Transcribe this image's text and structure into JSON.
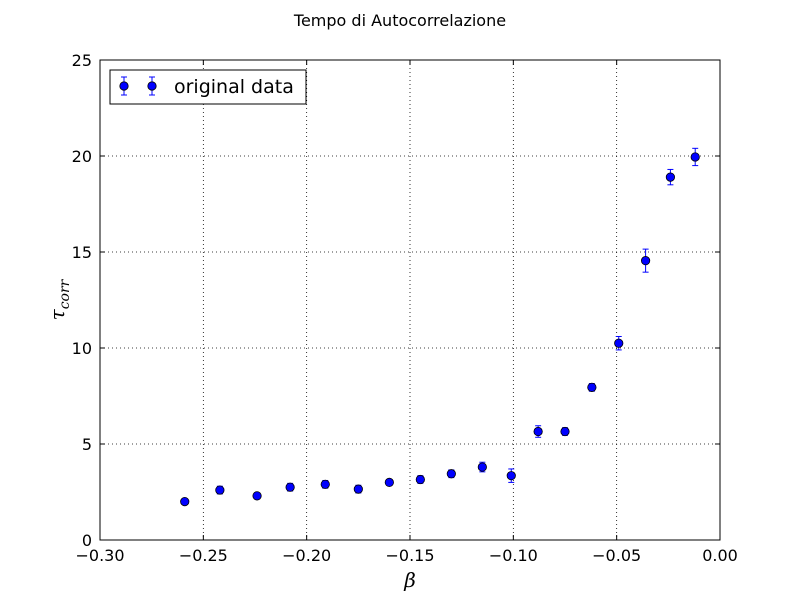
{
  "colors": {
    "marker": "#0000ff",
    "marker_edge": "#000000",
    "grid": "#000000",
    "background": "#ffffff"
  },
  "chart_data": {
    "type": "scatter",
    "title": "Tempo di Autocorrelazione",
    "xlabel": "β",
    "ylabel": {
      "base": "τ",
      "subscript": "corr"
    },
    "xlim": [
      -0.3,
      0.0
    ],
    "ylim": [
      0,
      25
    ],
    "xticks": [
      -0.3,
      -0.25,
      -0.2,
      -0.15,
      -0.1,
      -0.05,
      0.0
    ],
    "xtick_labels": [
      "−0.30",
      "−0.25",
      "−0.20",
      "−0.15",
      "−0.10",
      "−0.05",
      "0.00"
    ],
    "yticks": [
      0,
      5,
      10,
      15,
      20,
      25
    ],
    "ytick_labels": [
      "0",
      "5",
      "10",
      "15",
      "20",
      "25"
    ],
    "grid": true,
    "grid_style": "dotted",
    "legend_placement": "top-left",
    "series": [
      {
        "name": "original data",
        "marker": "circle",
        "error_bars": true,
        "points": [
          {
            "x": -0.259,
            "y": 2.0,
            "err": 0.1
          },
          {
            "x": -0.242,
            "y": 2.6,
            "err": 0.2
          },
          {
            "x": -0.224,
            "y": 2.3,
            "err": 0.1
          },
          {
            "x": -0.208,
            "y": 2.75,
            "err": 0.2
          },
          {
            "x": -0.191,
            "y": 2.9,
            "err": 0.2
          },
          {
            "x": -0.175,
            "y": 2.65,
            "err": 0.2
          },
          {
            "x": -0.16,
            "y": 3.0,
            "err": 0.1
          },
          {
            "x": -0.145,
            "y": 3.15,
            "err": 0.2
          },
          {
            "x": -0.13,
            "y": 3.45,
            "err": 0.2
          },
          {
            "x": -0.115,
            "y": 3.8,
            "err": 0.25
          },
          {
            "x": -0.101,
            "y": 3.35,
            "err": 0.35
          },
          {
            "x": -0.088,
            "y": 5.65,
            "err": 0.3
          },
          {
            "x": -0.075,
            "y": 5.65,
            "err": 0.2
          },
          {
            "x": -0.062,
            "y": 7.95,
            "err": 0.2
          },
          {
            "x": -0.049,
            "y": 10.25,
            "err": 0.35
          },
          {
            "x": -0.036,
            "y": 14.55,
            "err": 0.6
          },
          {
            "x": -0.024,
            "y": 18.9,
            "err": 0.4
          },
          {
            "x": -0.012,
            "y": 19.95,
            "err": 0.45
          }
        ]
      }
    ]
  }
}
